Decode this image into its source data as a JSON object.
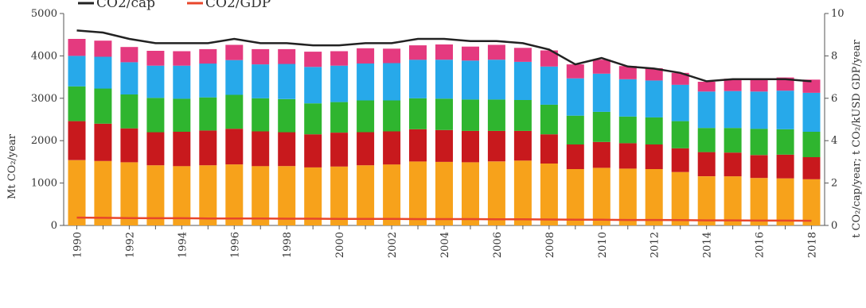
{
  "chart_data": {
    "type": "bar",
    "stacked": true,
    "categories": [
      "1990",
      "1991",
      "1992",
      "1993",
      "1994",
      "1995",
      "1996",
      "1997",
      "1998",
      "1999",
      "2000",
      "2001",
      "2002",
      "2003",
      "2004",
      "2005",
      "2006",
      "2007",
      "2008",
      "2009",
      "2010",
      "2011",
      "2012",
      "2013",
      "2014",
      "2015",
      "2016",
      "2017",
      "2018"
    ],
    "x_tick_labels": [
      "1990",
      "1992",
      "1994",
      "1996",
      "1998",
      "2000",
      "2002",
      "2004",
      "2006",
      "2008",
      "2010",
      "2012",
      "2014",
      "2016",
      "2018"
    ],
    "series": [
      {
        "color": "#f7a21b",
        "values": [
          1540,
          1520,
          1490,
          1420,
          1400,
          1420,
          1440,
          1400,
          1400,
          1370,
          1390,
          1420,
          1440,
          1510,
          1500,
          1490,
          1510,
          1530,
          1460,
          1330,
          1360,
          1340,
          1330,
          1260,
          1160,
          1160,
          1120,
          1110,
          1090
        ]
      },
      {
        "color": "#c8191d",
        "values": [
          920,
          880,
          800,
          780,
          810,
          820,
          840,
          820,
          800,
          780,
          800,
          780,
          780,
          760,
          750,
          740,
          720,
          700,
          690,
          580,
          610,
          600,
          580,
          560,
          570,
          560,
          540,
          560,
          520
        ]
      },
      {
        "color": "#2fb52f",
        "values": [
          820,
          830,
          800,
          810,
          780,
          780,
          800,
          780,
          780,
          730,
          720,
          750,
          730,
          730,
          740,
          740,
          740,
          730,
          700,
          680,
          710,
          630,
          640,
          640,
          570,
          580,
          620,
          600,
          600
        ]
      },
      {
        "color": "#27a9ea",
        "values": [
          720,
          750,
          760,
          760,
          780,
          800,
          820,
          800,
          830,
          860,
          860,
          870,
          880,
          910,
          920,
          920,
          940,
          900,
          900,
          880,
          900,
          880,
          870,
          860,
          860,
          870,
          880,
          910,
          920
        ]
      },
      {
        "color": "#e43a7f",
        "values": [
          400,
          380,
          360,
          350,
          340,
          340,
          360,
          360,
          350,
          360,
          340,
          360,
          340,
          340,
          360,
          330,
          350,
          330,
          380,
          330,
          330,
          310,
          290,
          280,
          230,
          290,
          280,
          310,
          310
        ]
      }
    ],
    "lines": [
      {
        "name": "CO2/cap",
        "color": "#222222",
        "axis": "right",
        "values": [
          9.2,
          9.1,
          8.8,
          8.6,
          8.6,
          8.6,
          8.8,
          8.6,
          8.6,
          8.5,
          8.5,
          8.6,
          8.6,
          8.8,
          8.8,
          8.7,
          8.7,
          8.6,
          8.3,
          7.6,
          7.9,
          7.5,
          7.4,
          7.2,
          6.8,
          6.9,
          6.9,
          6.9,
          6.8
        ]
      },
      {
        "name": "CO2/GDP",
        "color": "#e8462a",
        "axis": "right",
        "values": [
          0.37,
          0.36,
          0.35,
          0.34,
          0.34,
          0.33,
          0.33,
          0.33,
          0.32,
          0.32,
          0.31,
          0.31,
          0.31,
          0.3,
          0.3,
          0.3,
          0.29,
          0.29,
          0.28,
          0.27,
          0.27,
          0.26,
          0.26,
          0.25,
          0.24,
          0.24,
          0.23,
          0.23,
          0.22
        ]
      }
    ],
    "ylabel": "Mt CO₂/year",
    "ylim": [
      0,
      5000
    ],
    "yticks": [
      "0",
      "1000",
      "2000",
      "3000",
      "4000",
      "5000"
    ],
    "y2label": "t CO₂/cap/year; t CO₂/kUSD GDP/year",
    "y2lim": [
      0,
      10
    ],
    "y2ticks": [
      "0",
      "2",
      "4",
      "6",
      "8",
      "10"
    ],
    "legend": {
      "position": "top-left",
      "entries": [
        "CO2/cap",
        "CO2/GDP"
      ]
    },
    "grid": false
  }
}
